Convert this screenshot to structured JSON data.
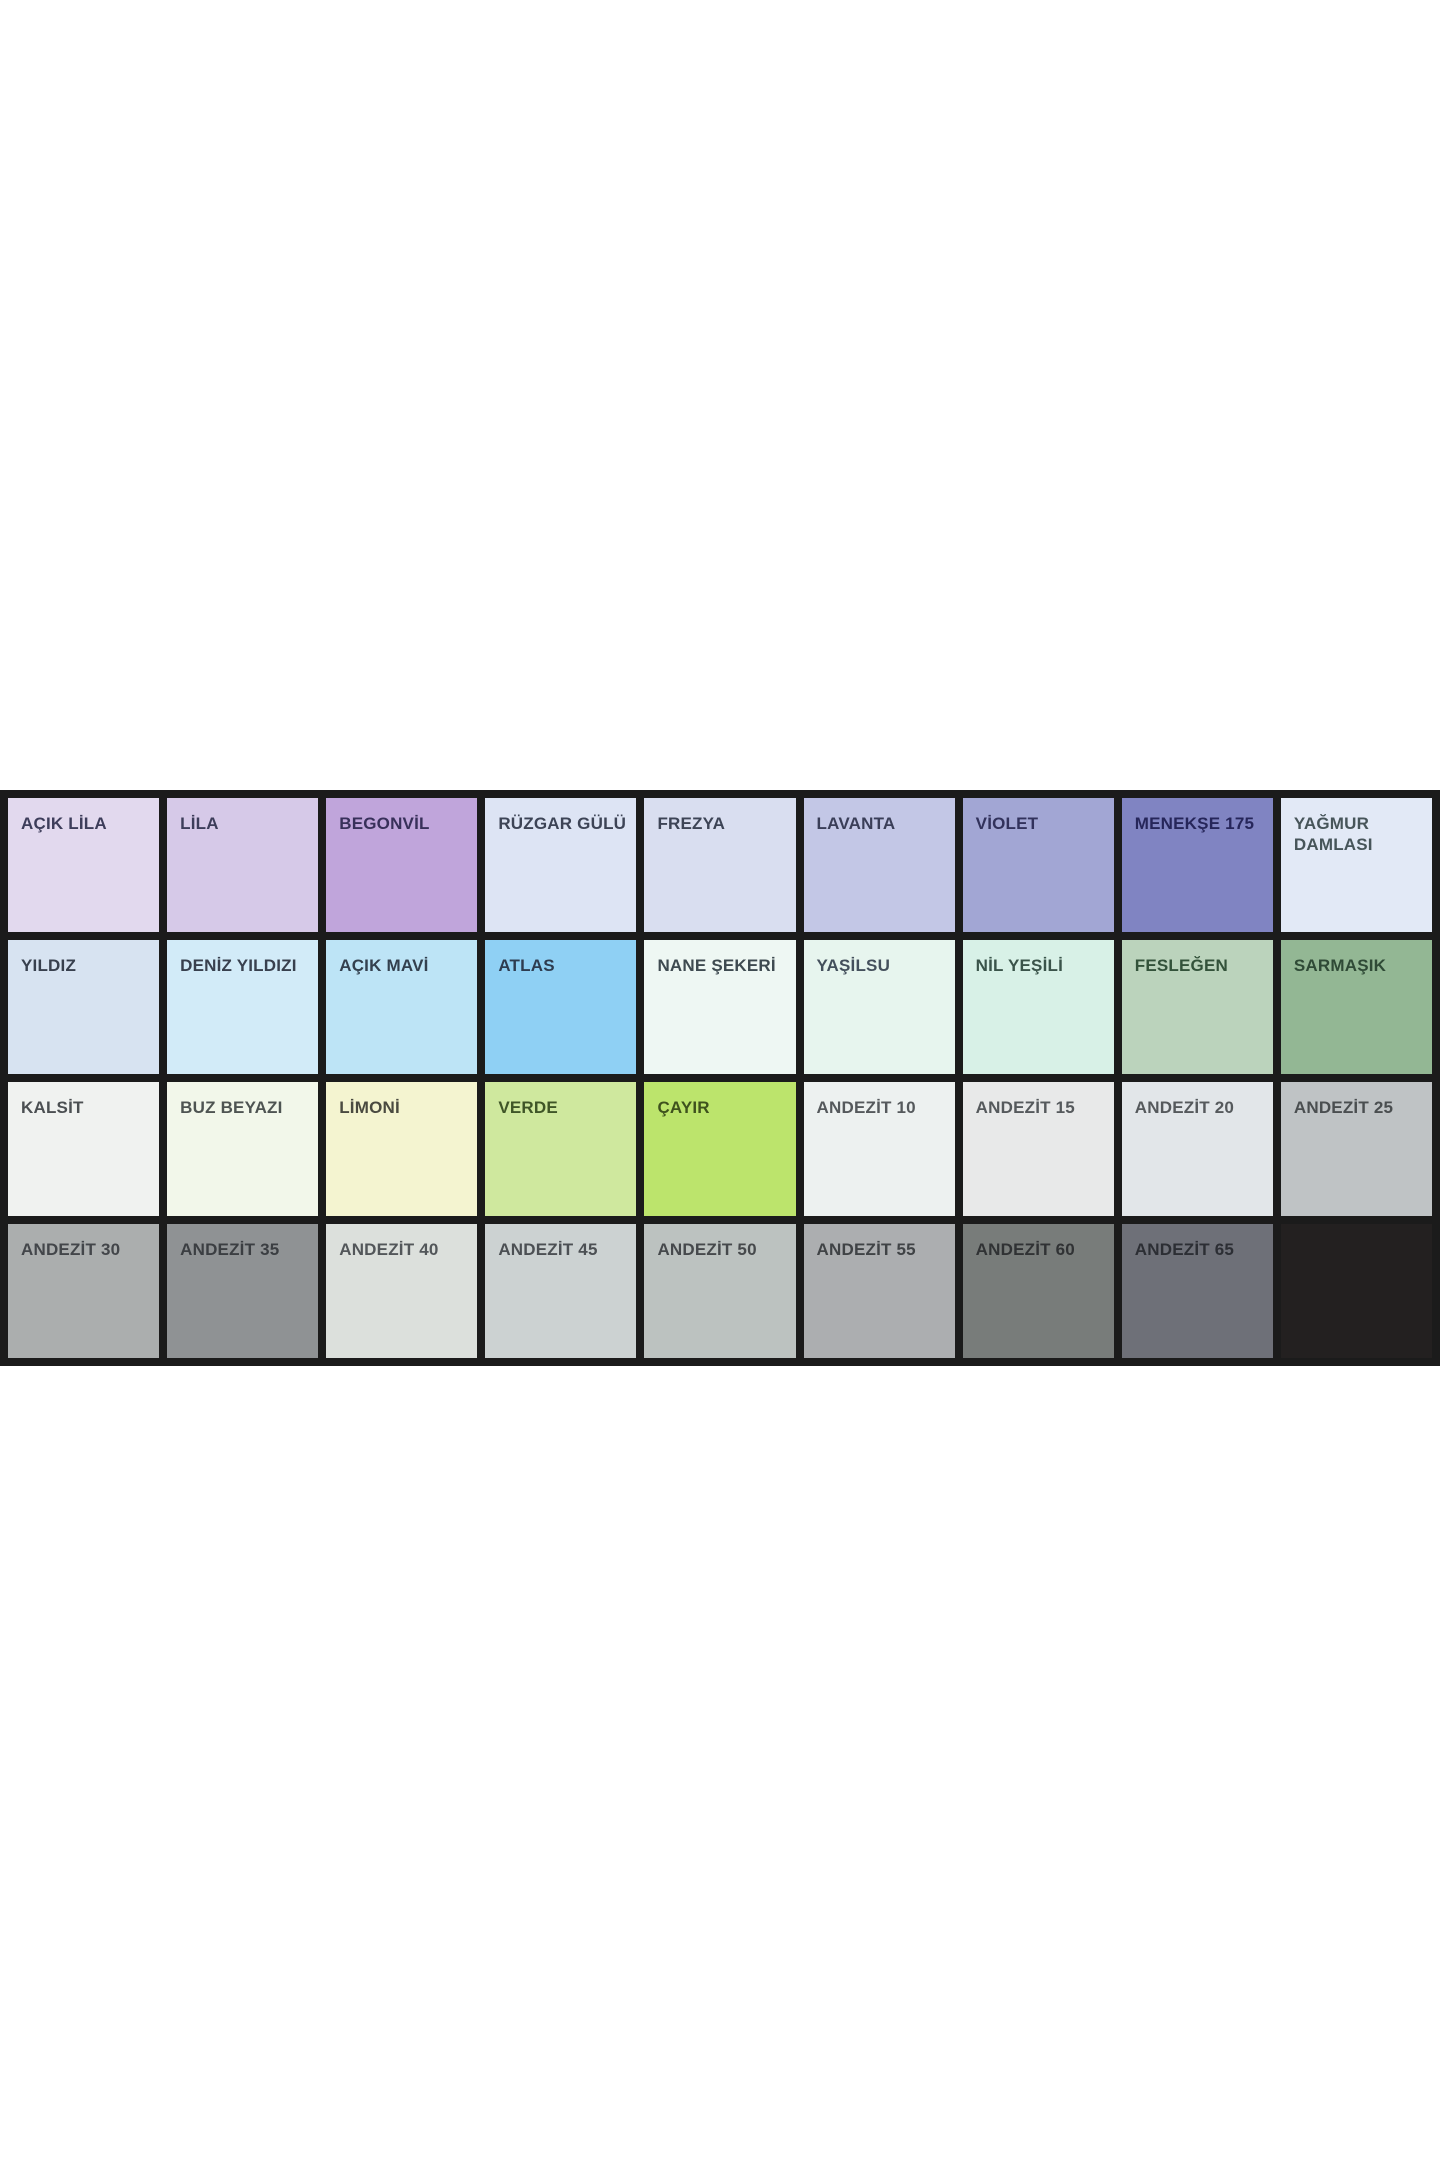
{
  "page": {
    "background_color": "#ffffff",
    "description": "Paint color swatch chart, 9 columns x 4 rows, black gridlines"
  },
  "palette": {
    "grid_border_color": "#1b1b1b",
    "columns": 9,
    "rows_count": 4,
    "rows": [
      {
        "cells": [
          {
            "label": "AÇIK LİLA",
            "color": "#e2d9ee",
            "label_color": "#3d3d5a"
          },
          {
            "label": "LİLA",
            "color": "#d6c9e8",
            "label_color": "#3d3d5a"
          },
          {
            "label": "BEGONVİL",
            "color": "#c0a5db",
            "label_color": "#38305a"
          },
          {
            "label": "RÜZGAR GÜLÜ",
            "color": "#dde4f4",
            "label_color": "#3d4456"
          },
          {
            "label": "FREZYA",
            "color": "#d9def0",
            "label_color": "#3d4456"
          },
          {
            "label": "LAVANTA",
            "color": "#c3c7e6",
            "label_color": "#3a3e58"
          },
          {
            "label": "VİOLET",
            "color": "#a2a6d4",
            "label_color": "#32325c"
          },
          {
            "label": "MENEKŞE 175",
            "color": "#8084c2",
            "label_color": "#26265a"
          },
          {
            "label": "YAĞMUR DAMLASI",
            "color": "#e2e9f6",
            "label_color": "#47555a"
          }
        ]
      },
      {
        "cells": [
          {
            "label": "YILDIZ",
            "color": "#d7e3f1",
            "label_color": "#38404e"
          },
          {
            "label": "DENİZ YILDIZI",
            "color": "#d2ebf8",
            "label_color": "#38404e"
          },
          {
            "label": "AÇIK MAVİ",
            "color": "#bde4f6",
            "label_color": "#33404e"
          },
          {
            "label": "ATLAS",
            "color": "#8fd0f4",
            "label_color": "#2e3c50"
          },
          {
            "label": "NANE ŞEKERİ",
            "color": "#eef7f3",
            "label_color": "#3e4a50"
          },
          {
            "label": "YAŞİLSU",
            "color": "#e7f5ee",
            "label_color": "#44505c"
          },
          {
            "label": "NİL YEŞİLİ",
            "color": "#d8f1e7",
            "label_color": "#3a544a"
          },
          {
            "label": "FESLEĞEN",
            "color": "#bbd3bc",
            "label_color": "#33523a"
          },
          {
            "label": "SARMAŞIK",
            "color": "#93b794",
            "label_color": "#2f4a36"
          }
        ]
      },
      {
        "cells": [
          {
            "label": "KALSİT",
            "color": "#f0f2f0",
            "label_color": "#4b4f52"
          },
          {
            "label": "BUZ BEYAZI",
            "color": "#f2f7ea",
            "label_color": "#4e5452"
          },
          {
            "label": "LİMONİ",
            "color": "#f4f4d0",
            "label_color": "#4a4a40"
          },
          {
            "label": "VERDE",
            "color": "#cfe89e",
            "label_color": "#3f5527"
          },
          {
            "label": "ÇAYIR",
            "color": "#bce46c",
            "label_color": "#3e511d"
          },
          {
            "label": "ANDEZİT 10",
            "color": "#edf1f0",
            "label_color": "#55595c"
          },
          {
            "label": "ANDEZİT 15",
            "color": "#e8e9e9",
            "label_color": "#55595c"
          },
          {
            "label": "ANDEZİT 20",
            "color": "#e2e6e9",
            "label_color": "#55595c"
          },
          {
            "label": "ANDEZİT 25",
            "color": "#bfc3c5",
            "label_color": "#4a4e50"
          }
        ]
      },
      {
        "cells": [
          {
            "label": "ANDEZİT 30",
            "color": "#abaeae",
            "label_color": "#43464a"
          },
          {
            "label": "ANDEZİT 35",
            "color": "#8f9294",
            "label_color": "#3b3e42"
          },
          {
            "label": "ANDEZİT 40",
            "color": "#dce0dc",
            "label_color": "#53575a"
          },
          {
            "label": "ANDEZİT 45",
            "color": "#ccd2d2",
            "label_color": "#4c5054"
          },
          {
            "label": "ANDEZİT 50",
            "color": "#bcc2c0",
            "label_color": "#46494c"
          },
          {
            "label": "ANDEZİT 55",
            "color": "#acaeb0",
            "label_color": "#404346"
          },
          {
            "label": "ANDEZİT 60",
            "color": "#787c7a",
            "label_color": "#303234"
          },
          {
            "label": "ANDEZİT 65",
            "color": "#6e7078",
            "label_color": "#2c2e34"
          },
          {
            "label": "",
            "color": "#232020",
            "label_color": "#232020"
          }
        ]
      }
    ]
  }
}
